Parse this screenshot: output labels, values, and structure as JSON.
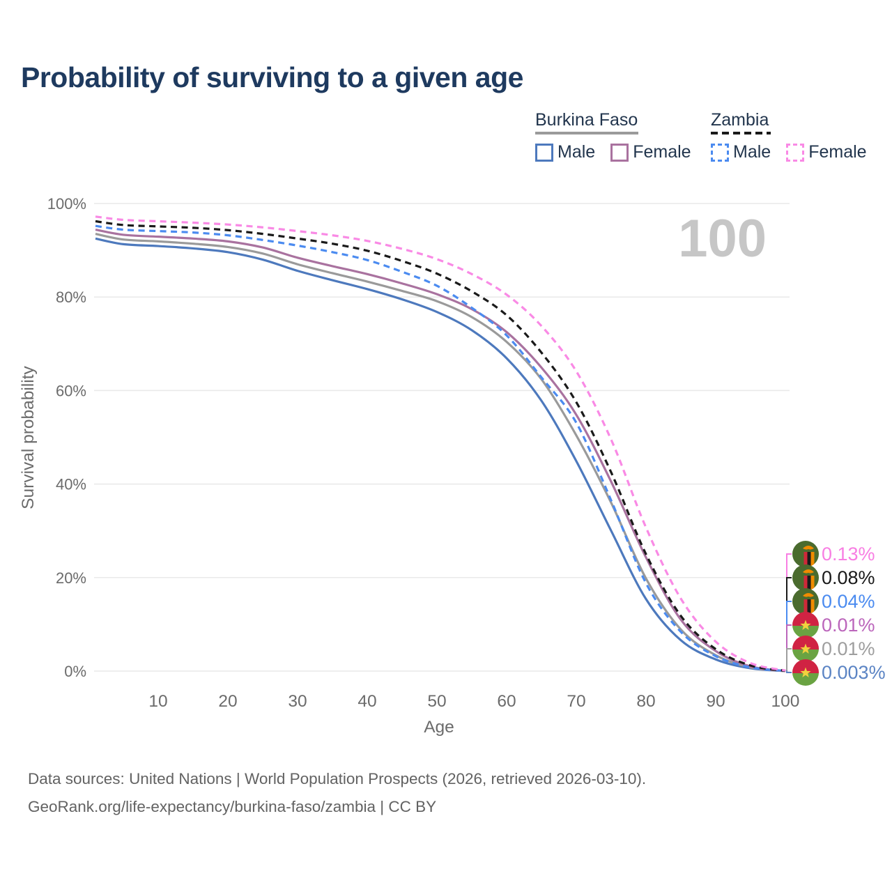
{
  "title": "Probability of surviving to a given age",
  "big_age_label": "100",
  "legend": {
    "groups": [
      {
        "name": "Burkina Faso",
        "line_style": "solid",
        "underline_color": "#9a9a9a",
        "items": [
          {
            "label": "Male",
            "color": "#4d79bd"
          },
          {
            "label": "Female",
            "color": "#a9729f"
          }
        ]
      },
      {
        "name": "Zambia",
        "line_style": "dashed",
        "underline_color": "#1a1a1a",
        "items": [
          {
            "label": "Male",
            "color": "#4b8bf0"
          },
          {
            "label": "Female",
            "color": "#f98ae5"
          }
        ]
      }
    ]
  },
  "chart_data": {
    "type": "line",
    "xlabel": "Age",
    "ylabel": "Survival probability",
    "xlim": [
      1,
      100
    ],
    "ylim": [
      0,
      100
    ],
    "grid": "horizontal",
    "x_ticks": [
      10,
      20,
      30,
      40,
      50,
      60,
      70,
      80,
      90,
      100
    ],
    "y_tick_values": [
      0,
      20,
      40,
      60,
      80,
      100
    ],
    "y_tick_labels": [
      "0%",
      "20%",
      "40%",
      "60%",
      "80%",
      "100%"
    ],
    "x": [
      1,
      5,
      10,
      15,
      20,
      25,
      30,
      35,
      40,
      45,
      50,
      55,
      60,
      65,
      70,
      75,
      80,
      85,
      90,
      95,
      100
    ],
    "series": [
      {
        "id": "bf-male",
        "country": "Burkina Faso",
        "sex": "Male",
        "color": "#4d79bd",
        "dashed": false,
        "flag": "burkina-faso",
        "end_label": "0.003%",
        "end_label_color": "#5b84c4",
        "label_row": 5,
        "values": [
          92.5,
          91.3,
          90.9,
          90.4,
          89.6,
          88.0,
          85.6,
          83.6,
          81.7,
          79.5,
          76.8,
          72.9,
          66.9,
          57.8,
          44.9,
          30.0,
          15.4,
          6.6,
          2.5,
          0.6,
          0.003
        ]
      },
      {
        "id": "bf-all",
        "country": "Burkina Faso",
        "sex": "",
        "color": "#9a9a9a",
        "dashed": false,
        "flag": "burkina-faso",
        "end_label": "0.01%",
        "end_label_color": "#9e9e9e",
        "label_row": 4,
        "values": [
          93.5,
          92.3,
          91.9,
          91.4,
          90.7,
          89.3,
          87.0,
          85.1,
          83.3,
          81.3,
          79.1,
          75.7,
          70.4,
          62.4,
          50.4,
          36.0,
          19.8,
          8.9,
          3.4,
          0.8,
          0.01
        ]
      },
      {
        "id": "bf-female",
        "country": "Burkina Faso",
        "sex": "Female",
        "color": "#a9729f",
        "dashed": false,
        "flag": "burkina-faso",
        "end_label": "0.01%",
        "end_label_color": "#bb65bb",
        "label_row": 3,
        "values": [
          94.4,
          93.3,
          92.9,
          92.5,
          91.9,
          90.6,
          88.4,
          86.6,
          84.9,
          82.9,
          80.6,
          77.4,
          72.5,
          64.9,
          54.8,
          40.5,
          24.3,
          11.0,
          4.3,
          1.0,
          0.01
        ]
      },
      {
        "id": "zm-male",
        "country": "Zambia",
        "sex": "Male",
        "color": "#4b8bf0",
        "dashed": true,
        "flag": "zambia",
        "end_label": "0.04%",
        "end_label_color": "#4b8bf0",
        "label_row": 2,
        "values": [
          95.2,
          94.4,
          94.1,
          93.8,
          93.2,
          92.2,
          91.0,
          89.6,
          87.9,
          85.4,
          82.4,
          77.7,
          71.8,
          62.8,
          53.1,
          36.5,
          18.8,
          8.4,
          3.2,
          0.8,
          0.04
        ]
      },
      {
        "id": "zm-all",
        "country": "Zambia",
        "sex": "",
        "color": "#1a1a1a",
        "dashed": true,
        "flag": "zambia",
        "end_label": "0.08%",
        "end_label_color": "#1a1a1a",
        "label_row": 1,
        "values": [
          96.2,
          95.4,
          95.1,
          94.8,
          94.3,
          93.5,
          92.5,
          91.4,
          89.9,
          87.7,
          85.0,
          81.2,
          76.1,
          68.1,
          57.5,
          42.5,
          25.0,
          11.8,
          4.7,
          1.2,
          0.08
        ]
      },
      {
        "id": "zm-female",
        "country": "Zambia",
        "sex": "Female",
        "color": "#f98ae5",
        "dashed": true,
        "flag": "zambia",
        "end_label": "0.13%",
        "end_label_color": "#f87ee3",
        "label_row": 0,
        "values": [
          97.2,
          96.5,
          96.2,
          95.9,
          95.5,
          94.9,
          94.1,
          93.2,
          92.0,
          90.3,
          88.1,
          84.9,
          80.5,
          73.8,
          64.1,
          49.5,
          30.7,
          15.5,
          6.3,
          1.7,
          0.13
        ]
      }
    ],
    "flags": {
      "zambia": {
        "field": "#4a6b2e",
        "stripe_red": "#ce2939",
        "stripe_black": "#1a1a1a",
        "stripe_orange": "#ef8b00",
        "eagle": "#ef8b00"
      },
      "burkina-faso": {
        "top": "#d02343",
        "bottom": "#6aa342",
        "star": "#f2d13e"
      }
    }
  },
  "footer": {
    "line1": "Data sources: United Nations | World Population Prospects (2026, retrieved 2026-03-10).",
    "line2": "GeoRank.org/life-expectancy/burkina-faso/zambia | CC BY"
  },
  "colors": {
    "title": "#1e3a5f",
    "axis_text": "#6b6b6b",
    "grid": "#e9e9e9",
    "big_label": "#c6c6c6",
    "legend_text": "#22354d",
    "footer_text": "#626262"
  }
}
